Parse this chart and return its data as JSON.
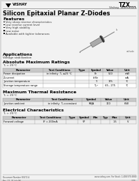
{
  "bg_color": "#d8d8d8",
  "page_bg": "#f0f0f0",
  "title_part": "TZX...",
  "title_sub": "Vishay Telefunken",
  "main_title": "Silicon Epitaxial Planar Z-Diodes",
  "features_title": "Features",
  "features": [
    "Very sharp reverse characteristics",
    "Low reverse current level",
    "Very high stability",
    "Low noise",
    "Available with tighter tolerances"
  ],
  "applications_title": "Applications",
  "applications_text": "Voltage stabilization",
  "abs_max_title": "Absolute Maximum Ratings",
  "abs_max_sub": "T₆ = 25°C",
  "abs_max_cols": [
    "Parameter",
    "Test Conditions",
    "Type",
    "Symbol",
    "Value",
    "Unit"
  ],
  "abs_max_rows": [
    [
      "Power dissipation",
      "in infinity  T₆ ≤25 °C",
      "",
      "Pᴇ",
      "500",
      "mW"
    ],
    [
      "Z-current",
      "",
      "",
      "Iᴇ/Vᴇ",
      "",
      "mA"
    ],
    [
      "Junction temperature",
      "",
      "",
      "Tⱼ",
      "175",
      "°C"
    ],
    [
      "Storage temperature range",
      "",
      "",
      "Tₛₜᴳ",
      "-65...175",
      "°C"
    ]
  ],
  "therm_title": "Maximum Thermal Resistance",
  "therm_sub": "T₆ = 25°C",
  "therm_cols": [
    "Parameter",
    "Test Conditions",
    "Symbol",
    "Value",
    "Unit"
  ],
  "therm_rows": [
    [
      "Junction ambient",
      "in infinity  T₆=constant",
      "RθJA",
      "300",
      "K/W"
    ]
  ],
  "elec_title": "Electrical Characteristics",
  "elec_sub": "T₆ = 25°C",
  "elec_cols": [
    "Parameter",
    "Test Conditions",
    "Type",
    "Symbol",
    "Min",
    "Typ",
    "Max",
    "Unit"
  ],
  "elec_rows": [
    [
      "Forward voltage",
      "IF = 200mA",
      "",
      "VF",
      "",
      "",
      "1.5",
      "V"
    ]
  ],
  "footer_left": "Document Number 85472-4\nRev. 12, 31-July-96",
  "footer_right": "www.vishay.com  For Stock: 1-408-970-6900\n7275"
}
